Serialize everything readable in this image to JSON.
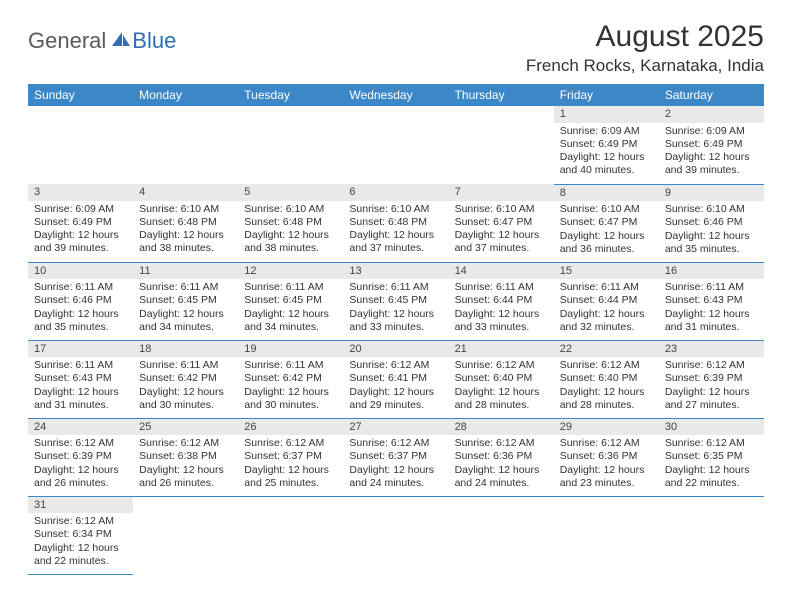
{
  "logo": {
    "part1": "General",
    "part2": "Blue"
  },
  "title": "August 2025",
  "location": "French Rocks, Karnataka, India",
  "colors": {
    "header_bg": "#3b87c8",
    "header_fg": "#ffffff",
    "daynum_bg": "#e9e9e9",
    "rule": "#3b87c8",
    "logo_blue": "#2c6fb5",
    "text": "#333333"
  },
  "weekdays": [
    "Sunday",
    "Monday",
    "Tuesday",
    "Wednesday",
    "Thursday",
    "Friday",
    "Saturday"
  ],
  "weeks": [
    [
      null,
      null,
      null,
      null,
      null,
      {
        "d": "1",
        "sr": "6:09 AM",
        "ss": "6:49 PM",
        "dl1": "12 hours",
        "dl2": "and 40 minutes."
      },
      {
        "d": "2",
        "sr": "6:09 AM",
        "ss": "6:49 PM",
        "dl1": "12 hours",
        "dl2": "and 39 minutes."
      }
    ],
    [
      {
        "d": "3",
        "sr": "6:09 AM",
        "ss": "6:49 PM",
        "dl1": "12 hours",
        "dl2": "and 39 minutes."
      },
      {
        "d": "4",
        "sr": "6:10 AM",
        "ss": "6:48 PM",
        "dl1": "12 hours",
        "dl2": "and 38 minutes."
      },
      {
        "d": "5",
        "sr": "6:10 AM",
        "ss": "6:48 PM",
        "dl1": "12 hours",
        "dl2": "and 38 minutes."
      },
      {
        "d": "6",
        "sr": "6:10 AM",
        "ss": "6:48 PM",
        "dl1": "12 hours",
        "dl2": "and 37 minutes."
      },
      {
        "d": "7",
        "sr": "6:10 AM",
        "ss": "6:47 PM",
        "dl1": "12 hours",
        "dl2": "and 37 minutes."
      },
      {
        "d": "8",
        "sr": "6:10 AM",
        "ss": "6:47 PM",
        "dl1": "12 hours",
        "dl2": "and 36 minutes."
      },
      {
        "d": "9",
        "sr": "6:10 AM",
        "ss": "6:46 PM",
        "dl1": "12 hours",
        "dl2": "and 35 minutes."
      }
    ],
    [
      {
        "d": "10",
        "sr": "6:11 AM",
        "ss": "6:46 PM",
        "dl1": "12 hours",
        "dl2": "and 35 minutes."
      },
      {
        "d": "11",
        "sr": "6:11 AM",
        "ss": "6:45 PM",
        "dl1": "12 hours",
        "dl2": "and 34 minutes."
      },
      {
        "d": "12",
        "sr": "6:11 AM",
        "ss": "6:45 PM",
        "dl1": "12 hours",
        "dl2": "and 34 minutes."
      },
      {
        "d": "13",
        "sr": "6:11 AM",
        "ss": "6:45 PM",
        "dl1": "12 hours",
        "dl2": "and 33 minutes."
      },
      {
        "d": "14",
        "sr": "6:11 AM",
        "ss": "6:44 PM",
        "dl1": "12 hours",
        "dl2": "and 33 minutes."
      },
      {
        "d": "15",
        "sr": "6:11 AM",
        "ss": "6:44 PM",
        "dl1": "12 hours",
        "dl2": "and 32 minutes."
      },
      {
        "d": "16",
        "sr": "6:11 AM",
        "ss": "6:43 PM",
        "dl1": "12 hours",
        "dl2": "and 31 minutes."
      }
    ],
    [
      {
        "d": "17",
        "sr": "6:11 AM",
        "ss": "6:43 PM",
        "dl1": "12 hours",
        "dl2": "and 31 minutes."
      },
      {
        "d": "18",
        "sr": "6:11 AM",
        "ss": "6:42 PM",
        "dl1": "12 hours",
        "dl2": "and 30 minutes."
      },
      {
        "d": "19",
        "sr": "6:11 AM",
        "ss": "6:42 PM",
        "dl1": "12 hours",
        "dl2": "and 30 minutes."
      },
      {
        "d": "20",
        "sr": "6:12 AM",
        "ss": "6:41 PM",
        "dl1": "12 hours",
        "dl2": "and 29 minutes."
      },
      {
        "d": "21",
        "sr": "6:12 AM",
        "ss": "6:40 PM",
        "dl1": "12 hours",
        "dl2": "and 28 minutes."
      },
      {
        "d": "22",
        "sr": "6:12 AM",
        "ss": "6:40 PM",
        "dl1": "12 hours",
        "dl2": "and 28 minutes."
      },
      {
        "d": "23",
        "sr": "6:12 AM",
        "ss": "6:39 PM",
        "dl1": "12 hours",
        "dl2": "and 27 minutes."
      }
    ],
    [
      {
        "d": "24",
        "sr": "6:12 AM",
        "ss": "6:39 PM",
        "dl1": "12 hours",
        "dl2": "and 26 minutes."
      },
      {
        "d": "25",
        "sr": "6:12 AM",
        "ss": "6:38 PM",
        "dl1": "12 hours",
        "dl2": "and 26 minutes."
      },
      {
        "d": "26",
        "sr": "6:12 AM",
        "ss": "6:37 PM",
        "dl1": "12 hours",
        "dl2": "and 25 minutes."
      },
      {
        "d": "27",
        "sr": "6:12 AM",
        "ss": "6:37 PM",
        "dl1": "12 hours",
        "dl2": "and 24 minutes."
      },
      {
        "d": "28",
        "sr": "6:12 AM",
        "ss": "6:36 PM",
        "dl1": "12 hours",
        "dl2": "and 24 minutes."
      },
      {
        "d": "29",
        "sr": "6:12 AM",
        "ss": "6:36 PM",
        "dl1": "12 hours",
        "dl2": "and 23 minutes."
      },
      {
        "d": "30",
        "sr": "6:12 AM",
        "ss": "6:35 PM",
        "dl1": "12 hours",
        "dl2": "and 22 minutes."
      }
    ],
    [
      {
        "d": "31",
        "sr": "6:12 AM",
        "ss": "6:34 PM",
        "dl1": "12 hours",
        "dl2": "and 22 minutes."
      },
      null,
      null,
      null,
      null,
      null,
      null
    ]
  ],
  "labels": {
    "sunrise": "Sunrise:",
    "sunset": "Sunset:",
    "daylight": "Daylight:"
  }
}
